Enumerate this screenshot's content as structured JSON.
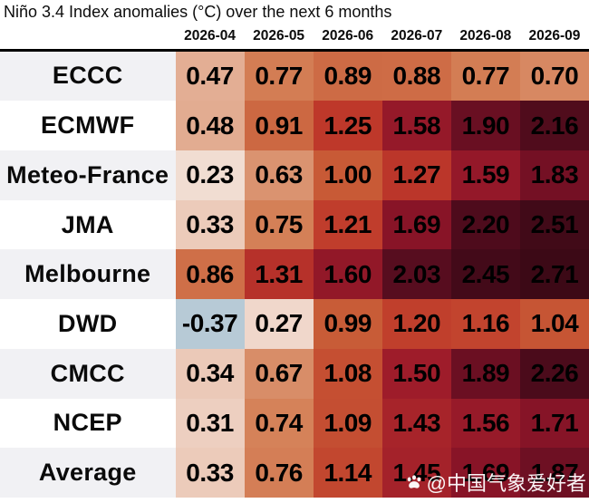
{
  "title": "Niño 3.4 Index anomalies (°C) over the next 6 months",
  "watermark": {
    "label": "@中国气象爱好者",
    "icon": "paw-icon",
    "color": "#ffffff"
  },
  "chart_data": {
    "type": "heatmap",
    "title": "Niño 3.4 Index anomalies (°C) over the next 6 months",
    "columns": [
      "2026-04",
      "2026-05",
      "2026-06",
      "2026-07",
      "2026-08",
      "2026-09"
    ],
    "rows": [
      "ECCC",
      "ECMWF",
      "Meteo-France",
      "JMA",
      "Melbourne",
      "DWD",
      "CMCC",
      "NCEP",
      "Average"
    ],
    "values": [
      [
        0.47,
        0.77,
        0.89,
        0.88,
        0.77,
        0.7
      ],
      [
        0.48,
        0.91,
        1.25,
        1.58,
        1.9,
        2.16
      ],
      [
        0.23,
        0.63,
        1.0,
        1.27,
        1.59,
        1.83
      ],
      [
        0.33,
        0.75,
        1.21,
        1.69,
        2.2,
        2.51
      ],
      [
        0.86,
        1.31,
        1.6,
        2.03,
        2.45,
        2.71
      ],
      [
        -0.37,
        0.27,
        0.99,
        1.2,
        1.16,
        1.04
      ],
      [
        0.34,
        0.67,
        1.08,
        1.5,
        1.89,
        2.26
      ],
      [
        0.31,
        0.74,
        1.09,
        1.43,
        1.56,
        1.71
      ],
      [
        0.33,
        0.76,
        1.14,
        1.45,
        1.69,
        1.87
      ]
    ],
    "value_decimals": 2,
    "cell_text_color": "#000000",
    "header_rule_color": "#000000",
    "row_label_stripe_colors": [
      "#f1f1f4",
      "#ffffff"
    ],
    "color_scale": {
      "stops": [
        {
          "value": -0.4,
          "color": "#b2c7d5"
        },
        {
          "value": 0.0,
          "color": "#f7eee8"
        },
        {
          "value": 0.25,
          "color": "#f1dbd0"
        },
        {
          "value": 0.5,
          "color": "#e1a88c"
        },
        {
          "value": 0.75,
          "color": "#d48057"
        },
        {
          "value": 1.0,
          "color": "#c85a36"
        },
        {
          "value": 1.25,
          "color": "#be382a"
        },
        {
          "value": 1.5,
          "color": "#9e1c2a"
        },
        {
          "value": 1.75,
          "color": "#811226"
        },
        {
          "value": 2.0,
          "color": "#590d1f"
        },
        {
          "value": 2.25,
          "color": "#4b0b1b"
        },
        {
          "value": 2.5,
          "color": "#410a18"
        },
        {
          "value": 2.75,
          "color": "#3b0916"
        }
      ]
    }
  }
}
